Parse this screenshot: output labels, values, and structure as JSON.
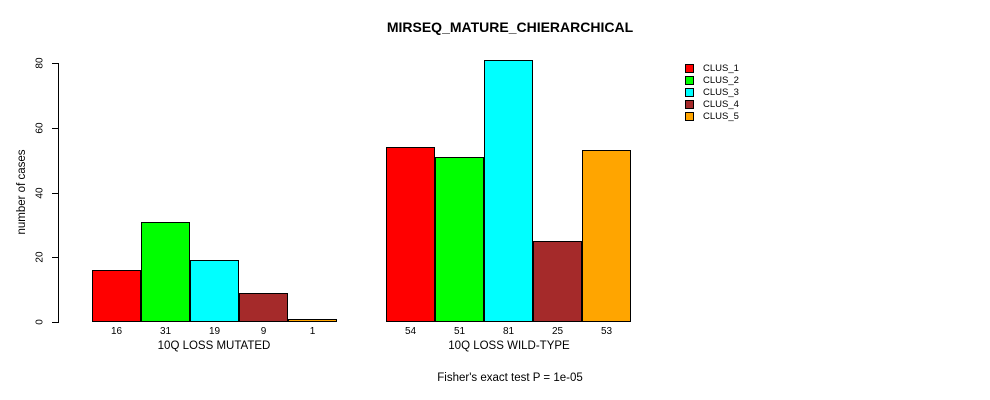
{
  "chart_data": {
    "type": "bar",
    "title": "MIRSEQ_MATURE_CHIERARCHICAL",
    "ylabel": "number of cases",
    "xlabel": "",
    "ylim": [
      0,
      80
    ],
    "yticks": [
      0,
      20,
      40,
      60,
      80
    ],
    "grid": false,
    "legend_position": "right-outside",
    "series_names": [
      "CLUS_1",
      "CLUS_2",
      "CLUS_3",
      "CLUS_4",
      "CLUS_5"
    ],
    "colors": [
      "#FF0000",
      "#00FF00",
      "#00FFFF",
      "#A52A2A",
      "#FFA500"
    ],
    "groups": [
      {
        "label": "10Q LOSS MUTATED",
        "values": [
          16,
          31,
          19,
          9,
          1
        ]
      },
      {
        "label": "10Q LOSS WILD-TYPE",
        "values": [
          54,
          51,
          81,
          25,
          53
        ]
      }
    ],
    "bar_value_labels_shown": true,
    "annotation": "Fisher's exact test P = 1e-05"
  }
}
